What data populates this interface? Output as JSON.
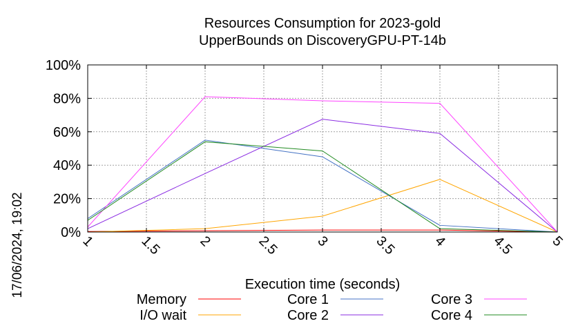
{
  "side_label": "17/06/2024, 19:02",
  "chart_data": {
    "type": "line",
    "title": [
      "Resources Consumption for 2023-gold",
      "UpperBounds on DiscoveryGPU-PT-14b"
    ],
    "xlabel": "Execution time (seconds)",
    "ylabel": "",
    "xlim": [
      1,
      5
    ],
    "ylim": [
      0,
      100
    ],
    "x_ticks": [
      1,
      1.5,
      2,
      2.5,
      3,
      3.5,
      4,
      4.5,
      5
    ],
    "x_tick_labels": [
      "1",
      "1.5",
      "2",
      "2.5",
      "3",
      "3.5",
      "4",
      "4.5",
      "5"
    ],
    "y_ticks": [
      0,
      20,
      40,
      60,
      80,
      100
    ],
    "y_tick_labels": [
      "0%",
      "20%",
      "40%",
      "60%",
      "80%",
      "100%"
    ],
    "grid": true,
    "legend_position": "bottom",
    "x": [
      1,
      2,
      3,
      4,
      5
    ],
    "series": [
      {
        "name": "Memory",
        "color": "#ff0000",
        "values": [
          0.3,
          0.8,
          1.2,
          1.2,
          0
        ]
      },
      {
        "name": "I/O wait",
        "color": "#ffa500",
        "values": [
          0,
          2,
          9.5,
          31.5,
          0
        ]
      },
      {
        "name": "Core 1",
        "color": "#4472c4",
        "values": [
          8,
          55,
          45,
          4,
          0
        ]
      },
      {
        "name": "Core 2",
        "color": "#8a2be2",
        "values": [
          2,
          35,
          67.5,
          59,
          0
        ]
      },
      {
        "name": "Core 3",
        "color": "#ff44ff",
        "values": [
          3,
          81,
          78.5,
          77,
          0
        ]
      },
      {
        "name": "Core 4",
        "color": "#228b22",
        "values": [
          7,
          54,
          48.5,
          2,
          0
        ]
      }
    ]
  }
}
